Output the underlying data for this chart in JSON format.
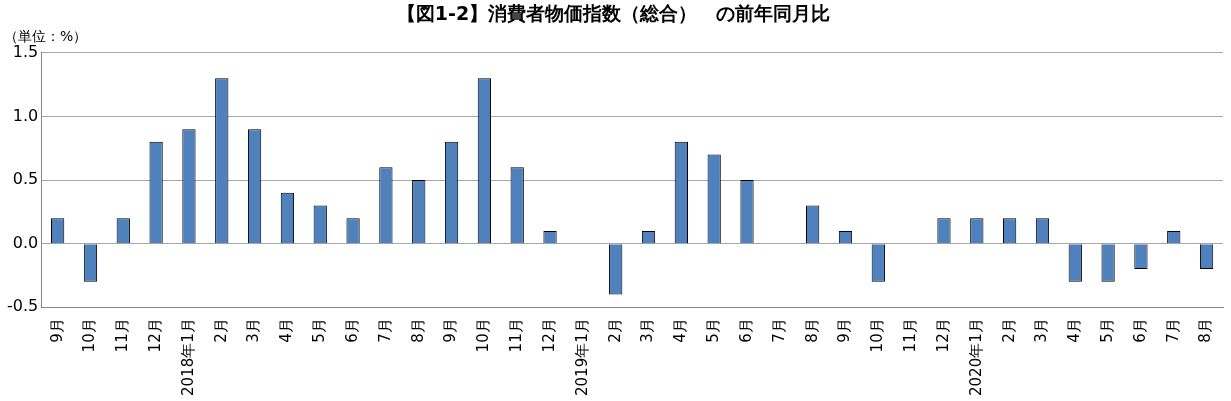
{
  "chart_data": {
    "type": "bar",
    "title": "【図1-2】消費者物価指数（総合）　の前年同月比",
    "ylabel": "（単位：%）",
    "categories": [
      "9月",
      "10月",
      "11月",
      "12月",
      "2018年1月",
      "2月",
      "3月",
      "4月",
      "5月",
      "6月",
      "7月",
      "8月",
      "9月",
      "10月",
      "11月",
      "12月",
      "2019年1月",
      "2月",
      "3月",
      "4月",
      "5月",
      "6月",
      "7月",
      "8月",
      "9月",
      "10月",
      "11月",
      "12月",
      "2020年1月",
      "2月",
      "3月",
      "4月",
      "5月",
      "6月",
      "7月",
      "8月"
    ],
    "values": [
      0.2,
      -0.3,
      0.2,
      0.8,
      0.9,
      1.3,
      0.9,
      0.4,
      0.3,
      0.2,
      0.6,
      0.5,
      0.8,
      1.3,
      0.6,
      0.1,
      0,
      -0.4,
      0.1,
      0.8,
      0.7,
      0.5,
      0,
      0.3,
      0.1,
      -0.3,
      0,
      0.2,
      0.2,
      0.2,
      0.2,
      -0.3,
      -0.3,
      -0.2,
      0.1,
      -0.2
    ],
    "color": "#4f81bd",
    "ylim": [
      -0.5,
      1.5
    ],
    "yticks": [
      {
        "value": -0.5,
        "label": "-0.5"
      },
      {
        "value": 0,
        "label": "0.0"
      },
      {
        "value": 0.5,
        "label": "0.5"
      },
      {
        "value": 1,
        "label": "1.0"
      },
      {
        "value": 1.5,
        "label": "1.5"
      }
    ],
    "grid": "y",
    "legend": false
  }
}
